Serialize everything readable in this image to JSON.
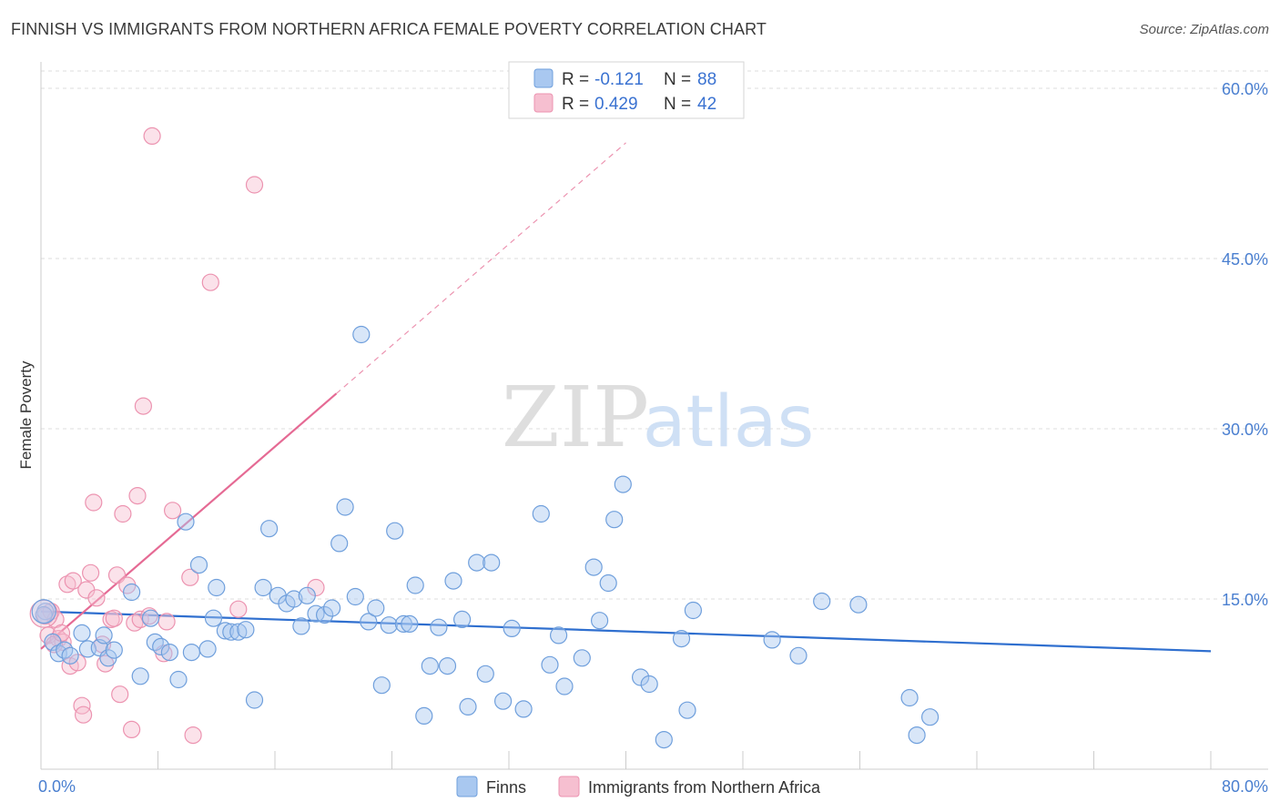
{
  "title": "FINNISH VS IMMIGRANTS FROM NORTHERN AFRICA FEMALE POVERTY CORRELATION CHART",
  "source": {
    "label": "Source:",
    "value": "ZipAtlas.com"
  },
  "watermark": {
    "zip": "ZIP",
    "atlas": "atlas"
  },
  "colors": {
    "finns_fill": "#a9c8f0",
    "finns_stroke": "#6f9fdc",
    "finns_line": "#2f6fcf",
    "imm_fill": "#f6bfd0",
    "imm_stroke": "#ec93b0",
    "imm_line": "#e56a94",
    "tick": "#4a7fd0",
    "grid": "#dcdcdc"
  },
  "chart_data": {
    "type": "scatter",
    "xlabel": "",
    "ylabel": "Female Poverty",
    "xlim": [
      0,
      80
    ],
    "ylim": [
      0,
      60
    ],
    "x_ticks": [
      "0.0%",
      "80.0%"
    ],
    "y_ticks": [
      {
        "value": 15,
        "label": "15.0%"
      },
      {
        "value": 30,
        "label": "30.0%"
      },
      {
        "value": 45,
        "label": "45.0%"
      },
      {
        "value": 60,
        "label": "60.0%"
      }
    ],
    "grid": true,
    "legend_position": "top-center",
    "stats": [
      {
        "r_label": "R =",
        "r": "-0.121",
        "n_label": "N =",
        "n": "88"
      },
      {
        "r_label": "R =",
        "r": "0.429",
        "n_label": "N =",
        "n": "42"
      }
    ],
    "series": [
      {
        "name": "Finns",
        "trend": {
          "x0": 0,
          "y0": 13.9,
          "x1": 80,
          "y1": 10.4
        },
        "points": [
          [
            0.3,
            13.9
          ],
          [
            0.8,
            11.2
          ],
          [
            1.2,
            10.2
          ],
          [
            1.6,
            10.5
          ],
          [
            2.0,
            10.0
          ],
          [
            2.8,
            12.0
          ],
          [
            3.2,
            10.6
          ],
          [
            4.0,
            10.7
          ],
          [
            4.3,
            11.8
          ],
          [
            4.6,
            9.8
          ],
          [
            5.0,
            10.5
          ],
          [
            6.2,
            15.6
          ],
          [
            6.8,
            8.2
          ],
          [
            7.5,
            13.3
          ],
          [
            7.8,
            11.2
          ],
          [
            8.2,
            10.8
          ],
          [
            8.8,
            10.3
          ],
          [
            9.4,
            7.9
          ],
          [
            9.9,
            21.8
          ],
          [
            10.3,
            10.3
          ],
          [
            10.8,
            18.0
          ],
          [
            11.4,
            10.6
          ],
          [
            11.8,
            13.3
          ],
          [
            12.0,
            16.0
          ],
          [
            12.6,
            12.2
          ],
          [
            13.0,
            12.1
          ],
          [
            13.5,
            12.1
          ],
          [
            14.0,
            12.3
          ],
          [
            14.6,
            6.1
          ],
          [
            15.2,
            16.0
          ],
          [
            15.6,
            21.2
          ],
          [
            16.2,
            15.3
          ],
          [
            16.8,
            14.6
          ],
          [
            17.3,
            15.0
          ],
          [
            17.8,
            12.6
          ],
          [
            18.2,
            15.3
          ],
          [
            18.8,
            13.7
          ],
          [
            19.4,
            13.6
          ],
          [
            19.9,
            14.2
          ],
          [
            20.4,
            19.9
          ],
          [
            20.8,
            23.1
          ],
          [
            21.5,
            15.2
          ],
          [
            21.9,
            38.3
          ],
          [
            22.4,
            13.0
          ],
          [
            22.9,
            14.2
          ],
          [
            23.3,
            7.4
          ],
          [
            23.8,
            12.7
          ],
          [
            24.2,
            21.0
          ],
          [
            24.8,
            12.8
          ],
          [
            25.2,
            12.8
          ],
          [
            25.6,
            16.2
          ],
          [
            26.2,
            4.7
          ],
          [
            26.6,
            9.1
          ],
          [
            27.2,
            12.5
          ],
          [
            27.8,
            9.1
          ],
          [
            28.2,
            16.6
          ],
          [
            28.8,
            13.2
          ],
          [
            29.2,
            5.5
          ],
          [
            29.8,
            18.2
          ],
          [
            30.4,
            8.4
          ],
          [
            30.8,
            18.2
          ],
          [
            31.6,
            6.0
          ],
          [
            32.2,
            12.4
          ],
          [
            33.0,
            5.3
          ],
          [
            34.2,
            22.5
          ],
          [
            34.8,
            9.2
          ],
          [
            35.4,
            11.8
          ],
          [
            35.8,
            7.3
          ],
          [
            37.0,
            9.8
          ],
          [
            37.8,
            17.8
          ],
          [
            38.2,
            13.1
          ],
          [
            38.8,
            16.4
          ],
          [
            39.2,
            22.0
          ],
          [
            39.8,
            25.1
          ],
          [
            41.0,
            8.1
          ],
          [
            41.6,
            7.5
          ],
          [
            42.6,
            2.6
          ],
          [
            43.8,
            11.5
          ],
          [
            44.2,
            5.2
          ],
          [
            44.6,
            14.0
          ],
          [
            50.0,
            11.4
          ],
          [
            51.8,
            10.0
          ],
          [
            53.4,
            14.8
          ],
          [
            55.9,
            14.5
          ],
          [
            59.4,
            6.3
          ],
          [
            59.9,
            3.0
          ],
          [
            60.8,
            4.6
          ],
          [
            0.2,
            13.6
          ]
        ]
      },
      {
        "name": "Immigrants from Northern Africa",
        "trend": {
          "x0": 0,
          "y0": 10.6,
          "x1": 20.2,
          "y1": 33.1
        },
        "trend_dashed_end": {
          "x": 40.0,
          "y": 55.2
        },
        "points": [
          [
            0.3,
            13.5
          ],
          [
            0.5,
            11.8
          ],
          [
            0.7,
            13.9
          ],
          [
            1.0,
            13.2
          ],
          [
            1.2,
            11.5
          ],
          [
            1.5,
            11.2
          ],
          [
            1.8,
            16.3
          ],
          [
            2.0,
            9.1
          ],
          [
            2.2,
            16.6
          ],
          [
            2.5,
            9.4
          ],
          [
            2.8,
            5.6
          ],
          [
            2.9,
            4.8
          ],
          [
            3.1,
            15.8
          ],
          [
            3.4,
            17.3
          ],
          [
            3.6,
            23.5
          ],
          [
            3.8,
            15.1
          ],
          [
            4.2,
            11.0
          ],
          [
            4.4,
            9.3
          ],
          [
            4.8,
            13.2
          ],
          [
            5.0,
            13.3
          ],
          [
            5.2,
            17.1
          ],
          [
            5.4,
            6.6
          ],
          [
            5.6,
            22.5
          ],
          [
            5.9,
            16.2
          ],
          [
            6.2,
            3.5
          ],
          [
            6.4,
            12.9
          ],
          [
            6.6,
            24.1
          ],
          [
            6.8,
            13.2
          ],
          [
            7.0,
            32.0
          ],
          [
            7.4,
            13.5
          ],
          [
            7.6,
            55.8
          ],
          [
            8.4,
            10.2
          ],
          [
            8.6,
            13.0
          ],
          [
            9.0,
            22.8
          ],
          [
            10.2,
            16.9
          ],
          [
            10.4,
            3.0
          ],
          [
            11.6,
            42.9
          ],
          [
            13.5,
            14.1
          ],
          [
            14.6,
            51.5
          ],
          [
            18.8,
            16.0
          ],
          [
            0.9,
            11.0
          ],
          [
            1.4,
            12.0
          ]
        ]
      }
    ]
  }
}
